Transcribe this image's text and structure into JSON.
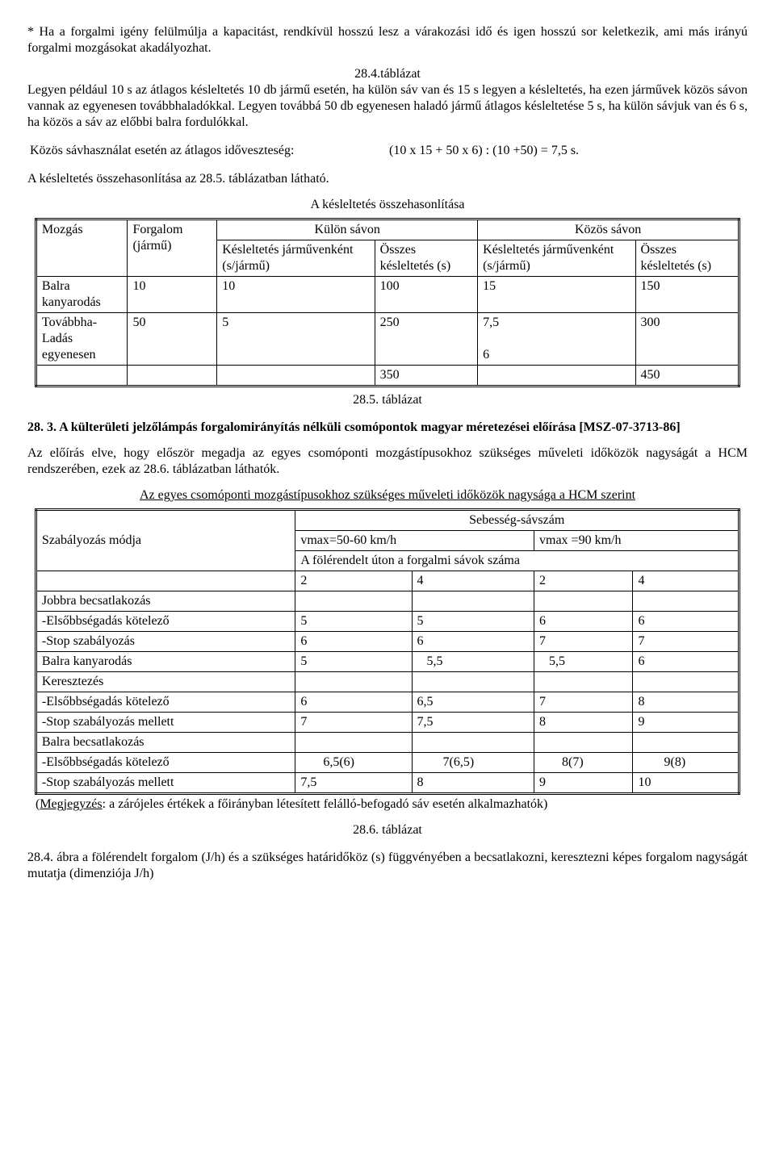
{
  "para1": "* Ha a forgalmi igény felülmúlja a kapacitást, rendkívül hosszú lesz a várakozási idő és igen hosszú sor keletkezik, ami más irányú forgalmi mozgásokat akadályozhat.",
  "caption_284": "28.4.táblázat",
  "para2": "Legyen például 10 s az átlagos késleltetés 10 db jármű esetén, ha külön sáv van és 15 s legyen a késleltetés, ha ezen járművek közös sávon vannak az egyenesen továbbhaladókkal. Legyen továbbá 50 db egyenesen haladó jármű átlagos késleltetése 5 s, ha külön sávjuk van és 6 s, ha közös a sáv az előbbi balra fordulókkal.",
  "calc_label": "Közös sávhasználat esetén az átlagos időveszteség:",
  "calc_value": "(10 x 15 + 50 x 6) : (10 +50) = 7,5 s.",
  "para3": "A késleltetés összehasonlítása az 28.5. táblázatban látható.",
  "tbl1_title": "A késleltetés összehasonlítása",
  "tbl1": {
    "h_kulon": "Külön sávon",
    "h_kozos": "Közös sávon",
    "h_mozgas": "Mozgás",
    "h_forgalom": "Forgalom (jármű)",
    "h_kj": "Késleltetés járművenként (s/jármű)",
    "h_ok": "Összes késleltetés (s)",
    "h_kj2": "Késleltetés járművenként (s/jármű)",
    "h_ok2": "Összes késleltetés (s)",
    "r1": {
      "m": "Balra kanyarodás",
      "f": "10",
      "a": "10",
      "b": "100",
      "c": "15",
      "d": "150"
    },
    "r2": {
      "m": "Továbbha-\nLadás egyenesen",
      "f": "50",
      "a": "5",
      "b": "250",
      "c": "7,5\n\n6",
      "d": "300"
    },
    "r3": {
      "b": "350",
      "d": "450"
    }
  },
  "caption_285": "28.5. táblázat",
  "sect_283": "28. 3. A külterületi jelzőlámpás forgalomirányítás nélküli csomópontok magyar méretezései előírása [MSZ-07-3713-86]",
  "para4": "Az előírás elve, hogy először megadja az egyes csomóponti mozgástípusokhoz szükséges műveleti időközök nagyságát a HCM rendszerében, ezek az 28.6. táblázatban láthatók.",
  "tbl2_title": "Az egyes csomóponti mozgástípusokhoz szükséges műveleti időközök nagysága a HCM szerint",
  "tbl2": {
    "h_szab": "Szabályozás módja",
    "h_seb": "Sebesség-sávszám",
    "h_vmax1": "vmax=50-60 km/h",
    "h_vmax2": "vmax =90 km/h",
    "h_fol": "A fölérendelt úton a forgalmi sávok száma",
    "h2": "2",
    "h4": "4",
    "h2b": "2",
    "h4b": "4",
    "rows": [
      {
        "l": "Jobbra becsatlakozás",
        "a": "",
        "b": "",
        "c": "",
        "d": ""
      },
      {
        "l": "-Elsőbbségadás kötelező",
        "a": "5",
        "b": "5",
        "c": "6",
        "d": "6"
      },
      {
        "l": "-Stop szabályozás",
        "a": "6",
        "b": "6",
        "c": "7",
        "d": "7"
      },
      {
        "l": "Balra kanyarodás",
        "a": "5",
        "b": "   5,5",
        "c": "   5,5",
        "d": "6"
      },
      {
        "l": "Keresztezés",
        "a": "",
        "b": "",
        "c": "",
        "d": ""
      },
      {
        "l": "-Elsőbbségadás kötelező",
        "a": "6",
        "b": "6,5",
        "c": "7",
        "d": "8"
      },
      {
        "l": "-Stop szabályozás mellett",
        "a": "7",
        "b": "7,5",
        "c": "8",
        "d": "9"
      },
      {
        "l": "Balra becsatlakozás",
        "a": "",
        "b": "",
        "c": "",
        "d": ""
      },
      {
        "l": "-Elsőbbségadás kötelező",
        "a": "       6,5(6)",
        "b": "        7(6,5)",
        "c": "       8(7)",
        "d": "        9(8)"
      },
      {
        "l": "-Stop szabályozás mellett",
        "a": "7,5",
        "b": "8",
        "c": "9",
        "d": "10"
      }
    ],
    "note_prefix": "(Megjegyzés",
    "note_rest": ": a zárójeles értékek a főirányban létesített felálló-befogadó sáv esetén alkalmazhatók)"
  },
  "caption_286": "28.6. táblázat",
  "para5": "28.4. ábra a fölérendelt forgalom (J/h) és a szükséges határidőköz (s) függvényében a becsatlakozni, keresztezni képes forgalom nagyságát mutatja (dimenziója J/h)"
}
